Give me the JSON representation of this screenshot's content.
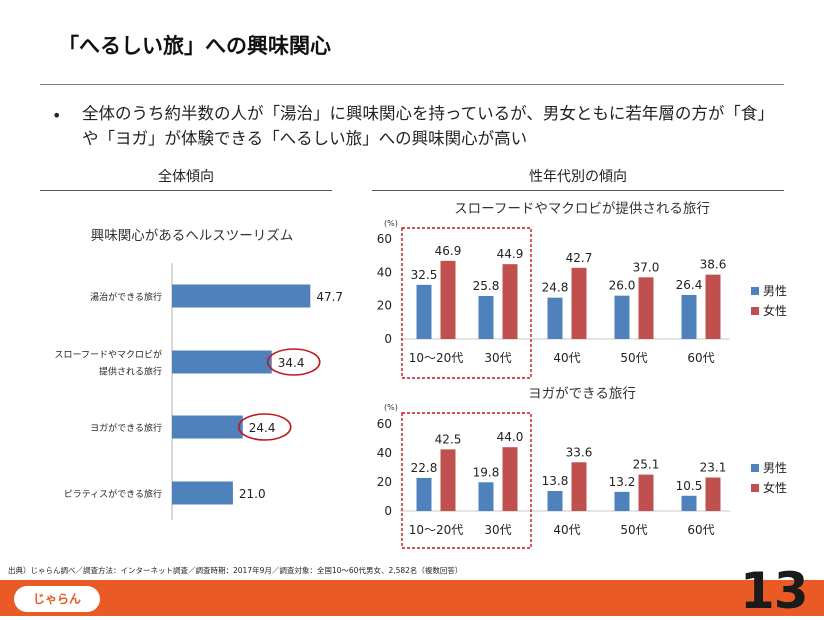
{
  "page": {
    "title": "「へるしい旅」への興味関心",
    "bullet": "全体のうち約半数の人が「湯治」に興味関心を持っているが、男女ともに若年層の方が「食」や「ヨガ」が体験できる「へるしい旅」への興味関心が高い",
    "left_heading": "全体傾向",
    "right_heading": "性年代別の傾向",
    "source": "出典）じゃらん調べ／調査方法：インターネット調査／調査時期：2017年9月／調査対象：全国10～60代男女、2,582名（複数回答）",
    "page_number": "13",
    "logo_text": "じゃらん"
  },
  "colors": {
    "male": "#4f81bd",
    "female": "#c0504d",
    "highlight_circle": "#c0191c",
    "footer": "#ea5a26"
  },
  "chart_data": [
    {
      "type": "bar",
      "orientation": "horizontal",
      "title": "興味関心があるヘルスツーリズム",
      "categories": [
        "湯治ができる旅行",
        "スローフードやマクロビが提供される旅行",
        "ヨガができる旅行",
        "ピラティスができる旅行"
      ],
      "category_lines": [
        [
          "湯治ができる旅行"
        ],
        [
          "スローフードやマクロビが",
          "提供される旅行"
        ],
        [
          "ヨガができる旅行"
        ],
        [
          "ピラティスができる旅行"
        ]
      ],
      "values": [
        47.7,
        34.4,
        24.4,
        21.0
      ],
      "value_labels": [
        "47.7",
        "34.4",
        "24.4",
        "21.0"
      ],
      "circled_values": [
        1,
        2
      ],
      "xlim": [
        0,
        50
      ]
    },
    {
      "type": "bar",
      "title": "スローフードやマクロビが提供される旅行",
      "unit": "(%)",
      "categories": [
        "10～20代",
        "30代",
        "40代",
        "50代",
        "60代"
      ],
      "series": [
        {
          "name": "男性",
          "values": [
            32.5,
            25.8,
            24.8,
            26.0,
            26.4
          ],
          "labels": [
            "32.5",
            "25.8",
            "24.8",
            "26.0",
            "26.4"
          ]
        },
        {
          "name": "女性",
          "values": [
            46.9,
            44.9,
            42.7,
            37.0,
            38.6
          ],
          "labels": [
            "46.9",
            "44.9",
            "42.7",
            "37.0",
            "38.6"
          ]
        }
      ],
      "yticks": [
        "0",
        "20",
        "40",
        "60"
      ],
      "ylim": [
        0,
        60
      ],
      "highlighted_categories": [
        0,
        1
      ]
    },
    {
      "type": "bar",
      "title": "ヨガができる旅行",
      "unit": "(%)",
      "categories": [
        "10～20代",
        "30代",
        "40代",
        "50代",
        "60代"
      ],
      "series": [
        {
          "name": "男性",
          "values": [
            22.8,
            19.8,
            13.8,
            13.2,
            10.5
          ],
          "labels": [
            "22.8",
            "19.8",
            "13.8",
            "13.2",
            "10.5"
          ]
        },
        {
          "name": "女性",
          "values": [
            42.5,
            44.0,
            33.6,
            25.1,
            23.1
          ],
          "labels": [
            "42.5",
            "44.0",
            "33.6",
            "25.1",
            "23.1"
          ]
        }
      ],
      "yticks": [
        "0",
        "20",
        "40",
        "60"
      ],
      "ylim": [
        0,
        60
      ],
      "highlighted_categories": [
        0,
        1
      ]
    }
  ]
}
